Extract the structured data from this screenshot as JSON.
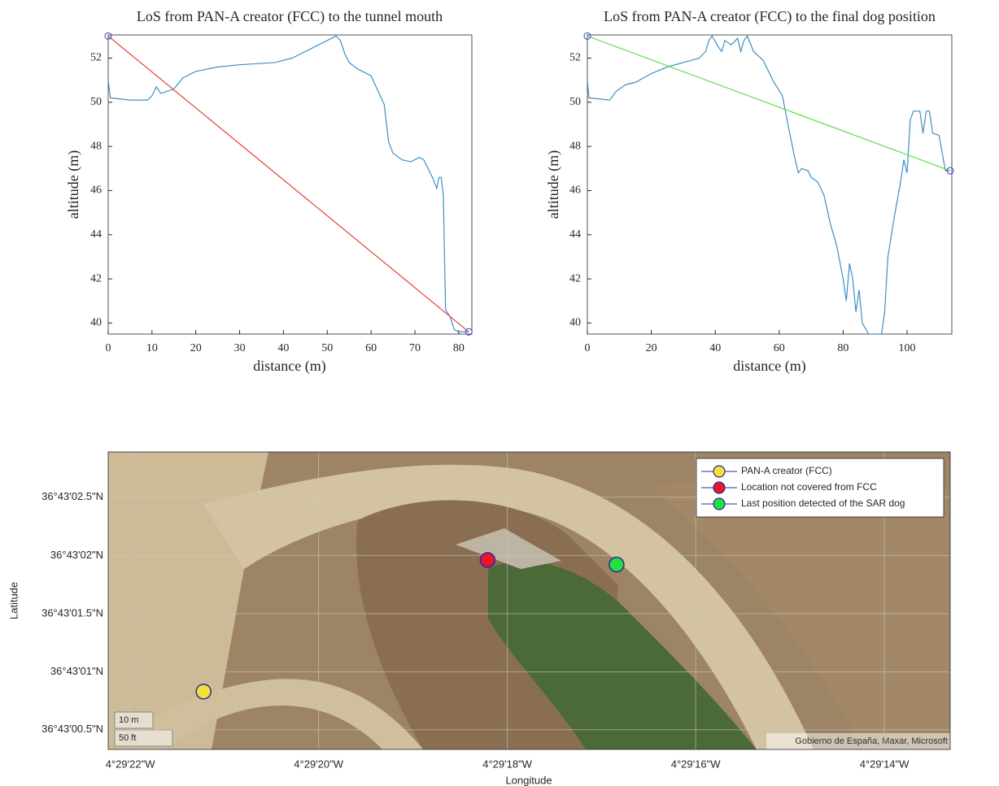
{
  "chart_data": [
    {
      "type": "line",
      "title": "LoS from PAN-A creator (FCC) to the tunnel mouth",
      "x_label": "distance (m)",
      "y_label": "altitude (m)",
      "xlim": [
        0,
        83
      ],
      "ylim": [
        39.5,
        53.05
      ],
      "xticks": [
        0,
        10,
        20,
        30,
        40,
        50,
        60,
        70,
        80
      ],
      "yticks": [
        40,
        42,
        44,
        46,
        48,
        50,
        52
      ],
      "series": [
        {
          "color": "#3f8fc4",
          "x": [
            0,
            0.5,
            5,
            9,
            10,
            11,
            12,
            15,
            17,
            20,
            25,
            30,
            38,
            42,
            45,
            48,
            50,
            51,
            52,
            53,
            54,
            55,
            57,
            60,
            63,
            64,
            65,
            67,
            69,
            71,
            72,
            73,
            74,
            75,
            75.5,
            76,
            76.5,
            77,
            78,
            79,
            80,
            81,
            82.3
          ],
          "values": [
            51,
            50.2,
            50.1,
            50.1,
            50.3,
            50.7,
            50.4,
            50.6,
            51.1,
            51.4,
            51.6,
            51.7,
            51.8,
            52,
            52.3,
            52.6,
            52.8,
            52.9,
            53,
            52.8,
            52.2,
            51.8,
            51.5,
            51.2,
            49.9,
            48.2,
            47.7,
            47.4,
            47.3,
            47.5,
            47.4,
            47,
            46.6,
            46.1,
            46.6,
            46.6,
            45.8,
            40.6,
            40.3,
            39.7,
            39.6,
            39.6,
            39.6
          ]
        },
        {
          "color": "#e8443a",
          "marker": "circle",
          "x": [
            0,
            82.3
          ],
          "values": [
            53,
            39.6
          ]
        }
      ]
    },
    {
      "type": "line",
      "title": "LoS from PAN-A creator (FCC) to the final dog position",
      "x_label": "distance (m)",
      "y_label": "altitude (m)",
      "xlim": [
        0,
        114
      ],
      "ylim": [
        39.5,
        53.05
      ],
      "xticks": [
        0,
        20,
        40,
        60,
        80,
        100
      ],
      "yticks": [
        40,
        42,
        44,
        46,
        48,
        50,
        52
      ],
      "series": [
        {
          "color": "#3f8fc4",
          "x": [
            0,
            0.5,
            7,
            9,
            12,
            15,
            20,
            25,
            30,
            35,
            37,
            38,
            39,
            41,
            42,
            43,
            45,
            47,
            48,
            49,
            50,
            52,
            55,
            58,
            61,
            63,
            65,
            66,
            67,
            69,
            70,
            72,
            74,
            76,
            78,
            80,
            81,
            82,
            83,
            84,
            85,
            86,
            88,
            92,
            93,
            94,
            96,
            98,
            99,
            100,
            101,
            102,
            104,
            105,
            106,
            107,
            108,
            110,
            112,
            113.5
          ],
          "values": [
            51,
            50.2,
            50.1,
            50.5,
            50.8,
            50.9,
            51.3,
            51.6,
            51.8,
            52,
            52.3,
            52.8,
            53,
            52.5,
            52.3,
            52.8,
            52.6,
            52.9,
            52.3,
            52.8,
            53,
            52.3,
            51.9,
            51,
            50.3,
            48.8,
            47.4,
            46.8,
            47,
            46.9,
            46.6,
            46.4,
            45.8,
            44.5,
            43.5,
            42,
            41,
            42.7,
            42,
            40.5,
            41.5,
            40,
            39.5,
            39.5,
            40.5,
            43,
            44.8,
            46.4,
            47.4,
            46.8,
            49.2,
            49.6,
            49.6,
            48.6,
            49.6,
            49.6,
            48.6,
            48.5,
            46.9,
            46.9
          ]
        },
        {
          "color": "#5ee04a",
          "marker": "circle",
          "x": [
            0,
            113.5
          ],
          "values": [
            53,
            46.9
          ]
        }
      ]
    },
    {
      "type": "scatter",
      "x_label": "Longitude",
      "y_label": "Latitude",
      "xlim": [
        -4.489509,
        -4.487028
      ],
      "ylim": [
        36.716759,
        36.717469
      ],
      "xticks": [
        {
          "value": -4.489444,
          "label": "4°29'22\"W"
        },
        {
          "value": -4.488889,
          "label": "4°29'20\"W"
        },
        {
          "value": -4.488333,
          "label": "4°29'18\"W"
        },
        {
          "value": -4.487778,
          "label": "4°29'16\"W"
        },
        {
          "value": -4.487222,
          "label": "4°29'14\"W"
        }
      ],
      "yticks": [
        {
          "value": 36.716806,
          "label": "36°43'00.5\"N"
        },
        {
          "value": 36.716944,
          "label": "36°43'01\"N"
        },
        {
          "value": 36.717083,
          "label": "36°43'01.5\"N"
        },
        {
          "value": 36.717222,
          "label": "36°43'02\"N"
        },
        {
          "value": 36.717361,
          "label": "36°43'02.5\"N"
        }
      ],
      "grid": true,
      "legend": "northeast",
      "scale_labels": [
        "10 m",
        "50 ft"
      ],
      "attribution": "Gobierno de España, Maxar, Microsoft",
      "series": [
        {
          "name": "PAN-A creator (FCC)",
          "color": "#f5e03a",
          "x": [
            -4.489228
          ],
          "values": [
            36.716897
          ]
        },
        {
          "name": "Location not covered from FCC",
          "color": "#e8162a",
          "x": [
            -4.488391
          ],
          "values": [
            36.717211
          ]
        },
        {
          "name": "Last position detected of the SAR dog",
          "color": "#22e040",
          "x": [
            -4.488011
          ],
          "values": [
            36.7172
          ]
        }
      ]
    }
  ]
}
